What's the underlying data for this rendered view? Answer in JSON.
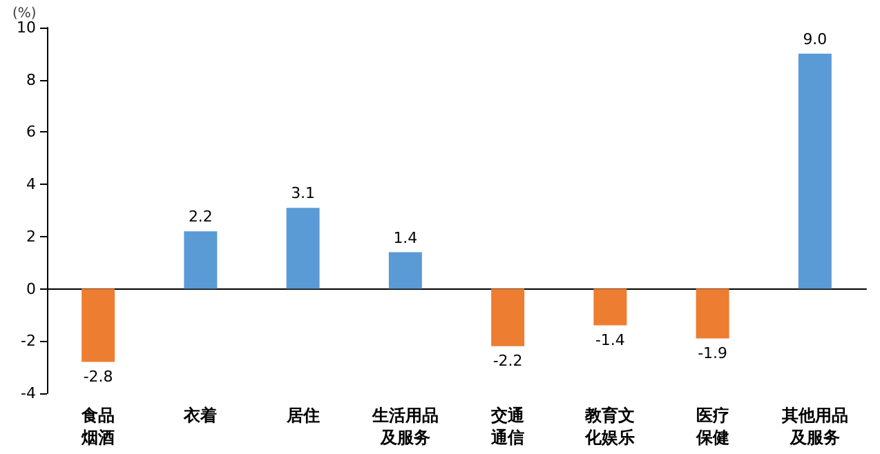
{
  "chart_data": {
    "type": "bar",
    "ylabel": "(%)",
    "categories": [
      "食品烟酒",
      "衣着",
      "居住",
      "生活用品及服务",
      "交通通信",
      "教育文化娱乐",
      "医疗保健",
      "其他用品及服务"
    ],
    "values": [
      -2.8,
      2.2,
      3.1,
      1.4,
      -2.2,
      -1.4,
      -1.9,
      9.0
    ],
    "value_labels": [
      "-2.8",
      "2.2",
      "3.1",
      "1.4",
      "-2.2",
      "-1.4",
      "-1.9",
      "9.0"
    ],
    "colors": [
      "#ed7d31",
      "#5b9bd5",
      "#5b9bd5",
      "#5b9bd5",
      "#ed7d31",
      "#ed7d31",
      "#ed7d31",
      "#5b9bd5"
    ],
    "ylim": [
      -4,
      10
    ],
    "yticks": [
      -4,
      -2,
      0,
      2,
      4,
      6,
      8,
      10
    ]
  }
}
